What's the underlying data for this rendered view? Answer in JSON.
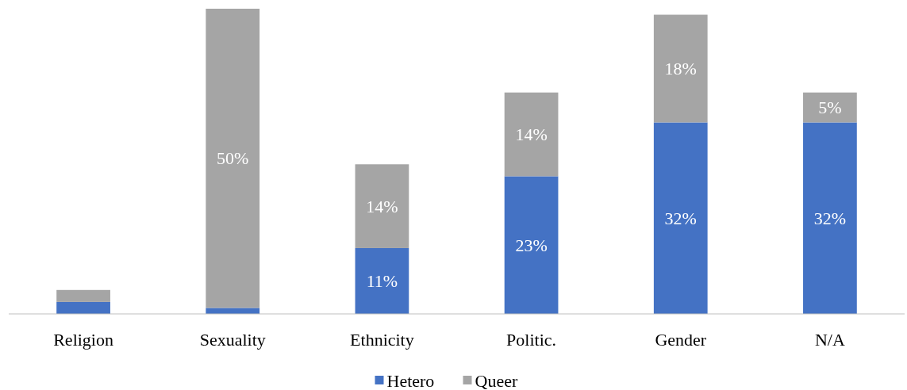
{
  "chart_data": {
    "type": "bar",
    "stacked": true,
    "categories": [
      "Religion",
      "Sexuality",
      "Ethnicity",
      "Politic.",
      "Gender",
      "N/A"
    ],
    "series": [
      {
        "name": "Hetero",
        "color": "#4472c4",
        "values": [
          2,
          1,
          11,
          23,
          32,
          32
        ],
        "value_labels": [
          null,
          null,
          "11%",
          "23%",
          "32%",
          "32%"
        ]
      },
      {
        "name": "Queer",
        "color": "#a5a5a5",
        "values": [
          2,
          50,
          14,
          14,
          18,
          5
        ],
        "value_labels": [
          null,
          "50%",
          "14%",
          "14%",
          "18%",
          "5%"
        ]
      }
    ],
    "legend": "bottom"
  }
}
